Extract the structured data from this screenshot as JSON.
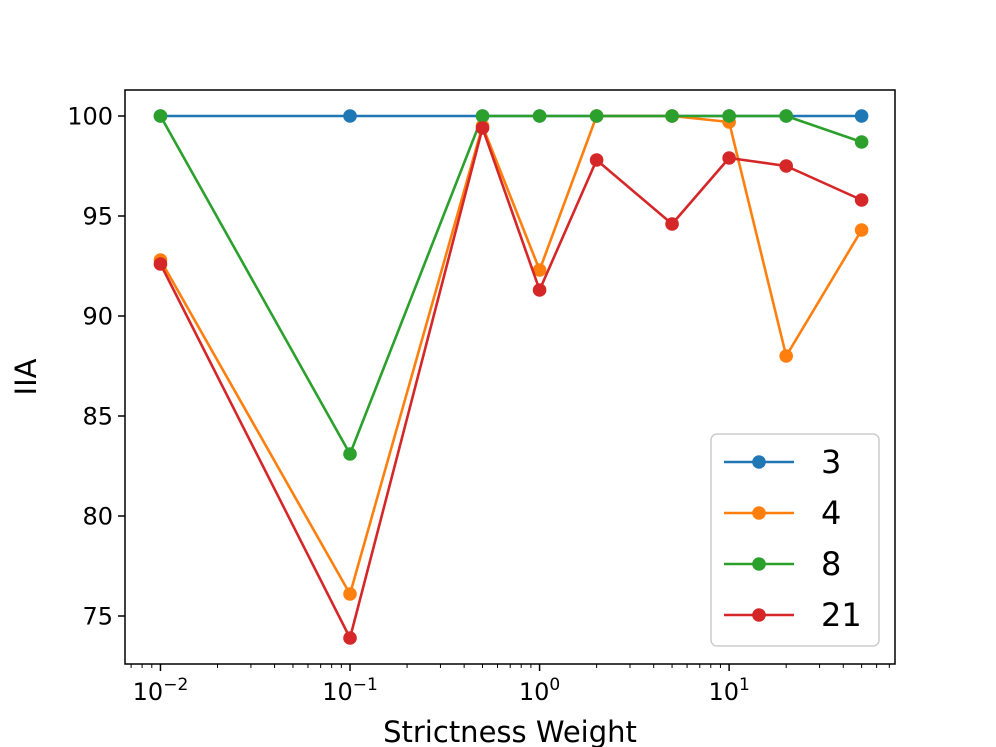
{
  "chart_data": {
    "type": "line",
    "title": "",
    "xlabel": "Strictness Weight",
    "ylabel": "IIA",
    "xscale": "log",
    "xlim": [
      0.0065,
      75
    ],
    "ylim": [
      72.6,
      101.3
    ],
    "x": [
      0.01,
      0.1,
      0.5,
      1,
      2,
      5,
      10,
      20,
      50
    ],
    "xticks": [
      {
        "value": 0.01,
        "base": "10",
        "exp": "−2"
      },
      {
        "value": 0.1,
        "base": "10",
        "exp": "−1"
      },
      {
        "value": 1,
        "base": "10",
        "exp": "0"
      },
      {
        "value": 10,
        "base": "10",
        "exp": "1"
      }
    ],
    "yticks": [
      {
        "value": 75,
        "label": "75"
      },
      {
        "value": 80,
        "label": "80"
      },
      {
        "value": 85,
        "label": "85"
      },
      {
        "value": 90,
        "label": "90"
      },
      {
        "value": 95,
        "label": "95"
      },
      {
        "value": 100,
        "label": "100"
      }
    ],
    "grid": false,
    "legend_position": "lower-right",
    "series": [
      {
        "name": "3",
        "color": "#1f77b4",
        "values": [
          100,
          100,
          100,
          100,
          100,
          100,
          100,
          100,
          100
        ]
      },
      {
        "name": "4",
        "color": "#ff7f0e",
        "values": [
          92.8,
          76.1,
          99.5,
          92.3,
          100,
          100,
          99.7,
          88.0,
          94.3
        ]
      },
      {
        "name": "8",
        "color": "#2ca02c",
        "values": [
          100,
          83.1,
          100,
          100,
          100,
          100,
          100,
          100,
          98.7
        ]
      },
      {
        "name": "21",
        "color": "#d62728",
        "values": [
          92.6,
          73.9,
          99.4,
          91.3,
          97.8,
          94.6,
          97.9,
          97.5,
          95.8
        ]
      }
    ]
  }
}
